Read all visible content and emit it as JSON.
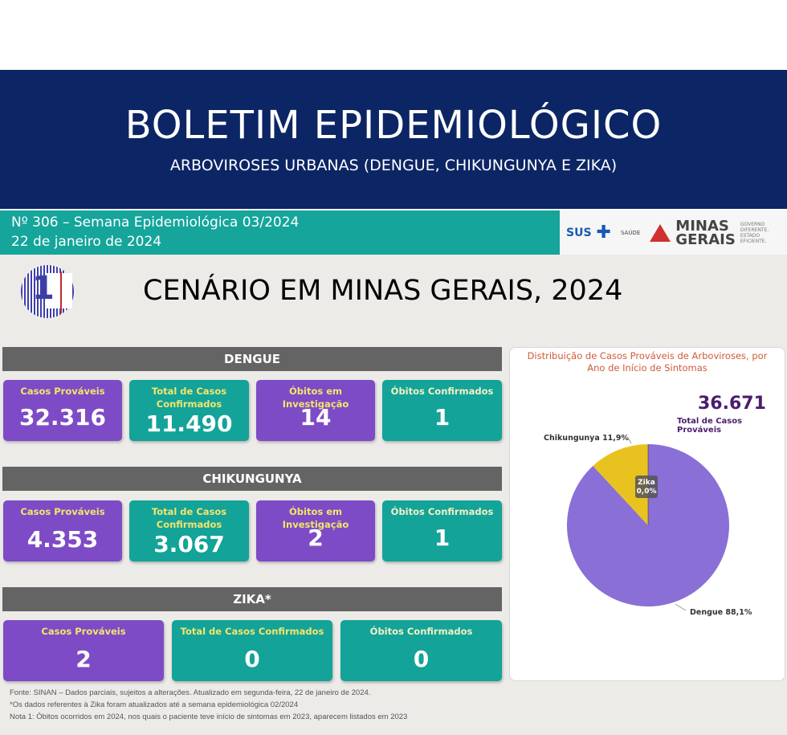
{
  "header": {
    "title": "BOLETIM EPIDEMIOLÓGICO",
    "subtitle": "ARBOVIROSES URBANAS (DENGUE, CHIKUNGUNYA E ZIKA)",
    "issue": "Nº 306 – Semana Epidemiológica 03/2024",
    "date": "22 de janeiro de 2024",
    "logos": {
      "sus": "SUS",
      "saude": "SAÚDE",
      "minas_line1": "MINAS",
      "minas_line2": "GERAIS",
      "governo": "GOVERNO DIFERENTE. ESTADO EFICIENTE."
    }
  },
  "section": {
    "number": "1",
    "title": "CENÁRIO EM MINAS GERAIS, 2024"
  },
  "dengue": {
    "header": "DENGUE",
    "cards": [
      {
        "label": "Casos Prováveis",
        "value": "32.316"
      },
      {
        "label": "Total de Casos Confirmados",
        "value": "11.490"
      },
      {
        "label": "Óbitos em Investigação",
        "value": "14"
      },
      {
        "label": "Óbitos Confirmados",
        "value": "1"
      }
    ]
  },
  "chikungunya": {
    "header": "CHIKUNGUNYA",
    "cards": [
      {
        "label": "Casos Prováveis",
        "value": "4.353"
      },
      {
        "label": "Total de Casos Confirmados",
        "value": "3.067"
      },
      {
        "label": "Óbitos em Investigação",
        "value": "2"
      },
      {
        "label": "Óbitos Confirmados",
        "value": "1"
      }
    ]
  },
  "zika": {
    "header": "ZIKA*",
    "cards": [
      {
        "label": "Casos Prováveis",
        "value": "2"
      },
      {
        "label": "Total de Casos Confirmados",
        "value": "0"
      },
      {
        "label": "Óbitos Confirmados",
        "value": "0"
      }
    ]
  },
  "chart_data": {
    "type": "pie",
    "title": "Distribuição de Casos Prováveis de Arboviroses, por Ano de Início de Sintomas",
    "total_value": "36.671",
    "total_label": "Total de Casos Prováveis",
    "slices": [
      {
        "name": "Dengue",
        "value": 88.1,
        "label": "Dengue 88,1%",
        "color": "#8a6fd6"
      },
      {
        "name": "Chikungunya",
        "value": 11.9,
        "label": "Chikungunya 11,9%",
        "color": "#e8c320"
      },
      {
        "name": "Zika",
        "value": 0.0,
        "label_line1": "Zika",
        "label_line2": "0,0%",
        "color": "#2b2b2b"
      }
    ]
  },
  "footer": {
    "line1": "Fonte: SINAN – Dados parciais, sujeitos a alterações. Atualizado em segunda-feira, 22 de janeiro de 2024.",
    "line2": "*Os dados referentes à Zika foram atualizados até a semana epidemiológica 02/2024",
    "line3": "Nota 1: Óbitos ocorridos em 2024, nos quais o paciente teve início de sintomas em 2023, aparecem listados em 2023"
  },
  "colors": {
    "navy": "#0c2565",
    "teal": "#13a399",
    "purple": "#7e4bc6",
    "gray_header": "#646464"
  }
}
